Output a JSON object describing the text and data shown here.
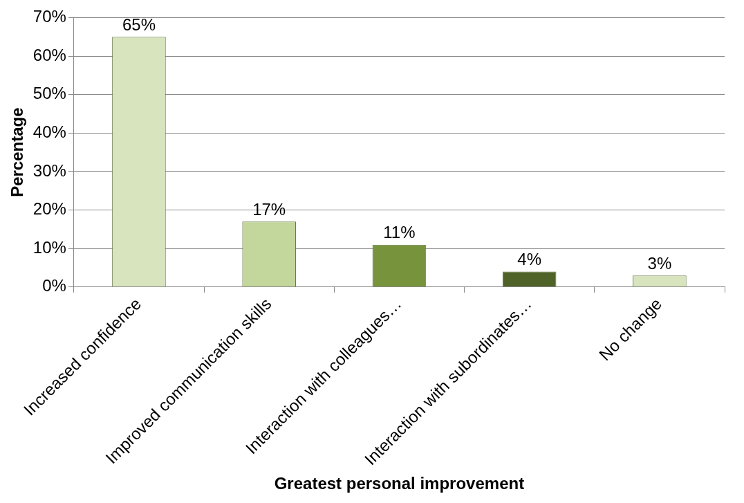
{
  "chart_data": {
    "type": "bar",
    "xlabel": "Greatest personal improvement",
    "ylabel": "Percentage",
    "categories": [
      "Increased confidence",
      "Improved communication skills",
      "Interaction with colleagues…",
      "Interaction with subordinates…",
      "No change"
    ],
    "values": [
      65,
      17,
      11,
      4,
      3
    ],
    "colors": [
      "#d7e4bd",
      "#c3d69b",
      "#77933c",
      "#4f6228",
      "#d7e4bd"
    ],
    "value_labels": [
      "65%",
      "17%",
      "11%",
      "4%",
      "3%"
    ],
    "ylim": [
      0,
      70
    ],
    "yticks": [
      {
        "value": 0,
        "label": "0%"
      },
      {
        "value": 10,
        "label": "10%"
      },
      {
        "value": 20,
        "label": "20%"
      },
      {
        "value": 30,
        "label": "30%"
      },
      {
        "value": 40,
        "label": "40%"
      },
      {
        "value": 50,
        "label": "50%"
      },
      {
        "value": 60,
        "label": "60%"
      },
      {
        "value": 70,
        "label": "70%"
      }
    ],
    "grid": "y",
    "legend": false
  }
}
